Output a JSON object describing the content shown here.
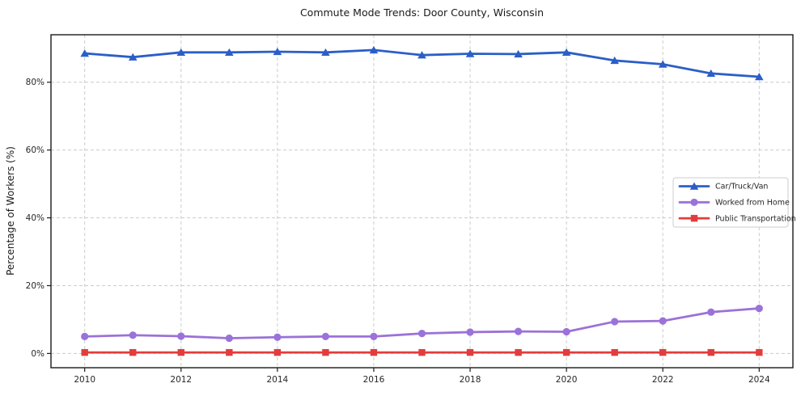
{
  "chart_data": {
    "type": "line",
    "title": "Commute Mode Trends: Door County, Wisconsin",
    "xlabel": "",
    "ylabel": "Percentage of Workers (%)",
    "x": [
      2010,
      2011,
      2012,
      2013,
      2014,
      2015,
      2016,
      2017,
      2018,
      2019,
      2020,
      2021,
      2022,
      2023,
      2024
    ],
    "series": [
      {
        "name": "Car/Truck/Van",
        "color": "#2b5fc7",
        "marker": "triangle",
        "values": [
          88.5,
          87.4,
          88.8,
          88.8,
          89.0,
          88.8,
          89.5,
          88.0,
          88.4,
          88.3,
          88.8,
          86.4,
          85.3,
          82.6,
          81.6
        ]
      },
      {
        "name": "Worked from Home",
        "color": "#9b72d8",
        "marker": "circle",
        "values": [
          5.0,
          5.4,
          5.1,
          4.5,
          4.8,
          5.0,
          5.0,
          5.9,
          6.3,
          6.5,
          6.4,
          9.4,
          9.6,
          12.2,
          13.3
        ]
      },
      {
        "name": "Public Transportation",
        "color": "#e23d3d",
        "marker": "square",
        "values": [
          0.3,
          0.3,
          0.3,
          0.3,
          0.3,
          0.3,
          0.3,
          0.3,
          0.3,
          0.3,
          0.3,
          0.3,
          0.3,
          0.3,
          0.3
        ]
      }
    ],
    "xticks": [
      2010,
      2012,
      2014,
      2016,
      2018,
      2020,
      2022,
      2024
    ],
    "xtick_labels": [
      "2010",
      "2012",
      "2014",
      "2016",
      "2018",
      "2020",
      "2022",
      "2024"
    ],
    "yticks": [
      0,
      20,
      40,
      60,
      80
    ],
    "ytick_labels": [
      "0%",
      "20%",
      "40%",
      "60%",
      "80%"
    ],
    "xlim": [
      2009.3,
      2024.7
    ],
    "ylim": [
      -4.2,
      94.0
    ],
    "grid": true,
    "grid_style": "dashed",
    "legend_position": "center right",
    "colors": {
      "grid": "#cccccc",
      "spine": "#1a1a1a",
      "background": "#ffffff",
      "legend_border": "#cccccc",
      "text": "#262626"
    }
  }
}
